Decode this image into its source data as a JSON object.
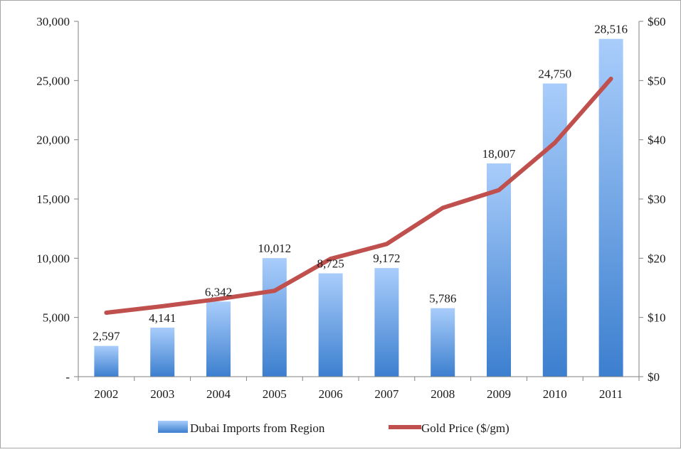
{
  "chart_data": {
    "type": "bar",
    "title": "",
    "xlabel": "",
    "ylabel": "",
    "categories": [
      "2002",
      "2003",
      "2004",
      "2005",
      "2006",
      "2007",
      "2008",
      "2009",
      "2010",
      "2011"
    ],
    "series": [
      {
        "name": "Dubai Imports from Region",
        "type": "bar",
        "axis": "left",
        "values": [
          2597,
          4141,
          6342,
          10012,
          8725,
          9172,
          5786,
          18007,
          24750,
          28516
        ],
        "labels": [
          "2,597",
          "4,141",
          "6,342",
          "10,012",
          "8,725",
          "9,172",
          "5,786",
          "18,007",
          "24,750",
          "28,516"
        ],
        "color_top": "#a9cdfb",
        "color_bottom": "#3c7fcf"
      },
      {
        "name": "Gold Price ($/gm)",
        "type": "line",
        "axis": "right",
        "values": [
          10.8,
          11.9,
          13.1,
          14.5,
          19.9,
          22.4,
          28.5,
          31.5,
          39.5,
          50.3
        ],
        "color": "#c0504d"
      }
    ],
    "y_left": {
      "ylim": [
        0,
        30000
      ],
      "ticks": [
        0,
        5000,
        10000,
        15000,
        20000,
        25000,
        30000
      ],
      "tick_labels": [
        "-",
        "5,000",
        "10,000",
        "15,000",
        "20,000",
        "25,000",
        "30,000"
      ]
    },
    "y_right": {
      "ylim": [
        0,
        60
      ],
      "ticks": [
        0,
        10,
        20,
        30,
        40,
        50,
        60
      ],
      "tick_labels": [
        "$0",
        "$10",
        "$20",
        "$30",
        "$40",
        "$50",
        "$60"
      ]
    },
    "grid": false,
    "legend_position": "bottom"
  }
}
